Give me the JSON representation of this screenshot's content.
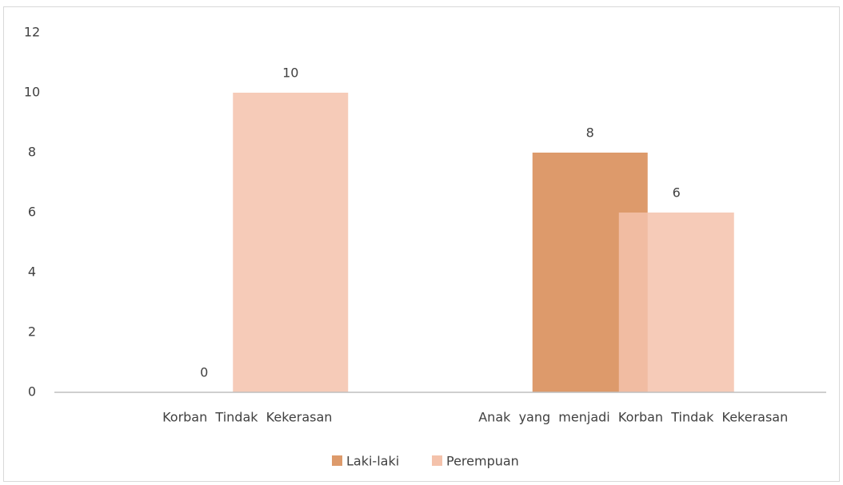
{
  "chart_data": {
    "type": "bar",
    "categories": [
      "Korban  Tindak  Kekerasan",
      "Anak  yang  menjadi  Korban  Tindak  Kekerasan"
    ],
    "series": [
      {
        "name": "Laki-laki",
        "color": "#dd9a6b",
        "values": [
          0,
          8
        ]
      },
      {
        "name": "Perempuan",
        "color": "#f4c2ab",
        "values": [
          10,
          6
        ]
      }
    ],
    "ylim": [
      0,
      12
    ],
    "yticks": [
      0,
      2,
      4,
      6,
      8,
      10,
      12
    ],
    "grid": false,
    "legend": "bottom"
  }
}
